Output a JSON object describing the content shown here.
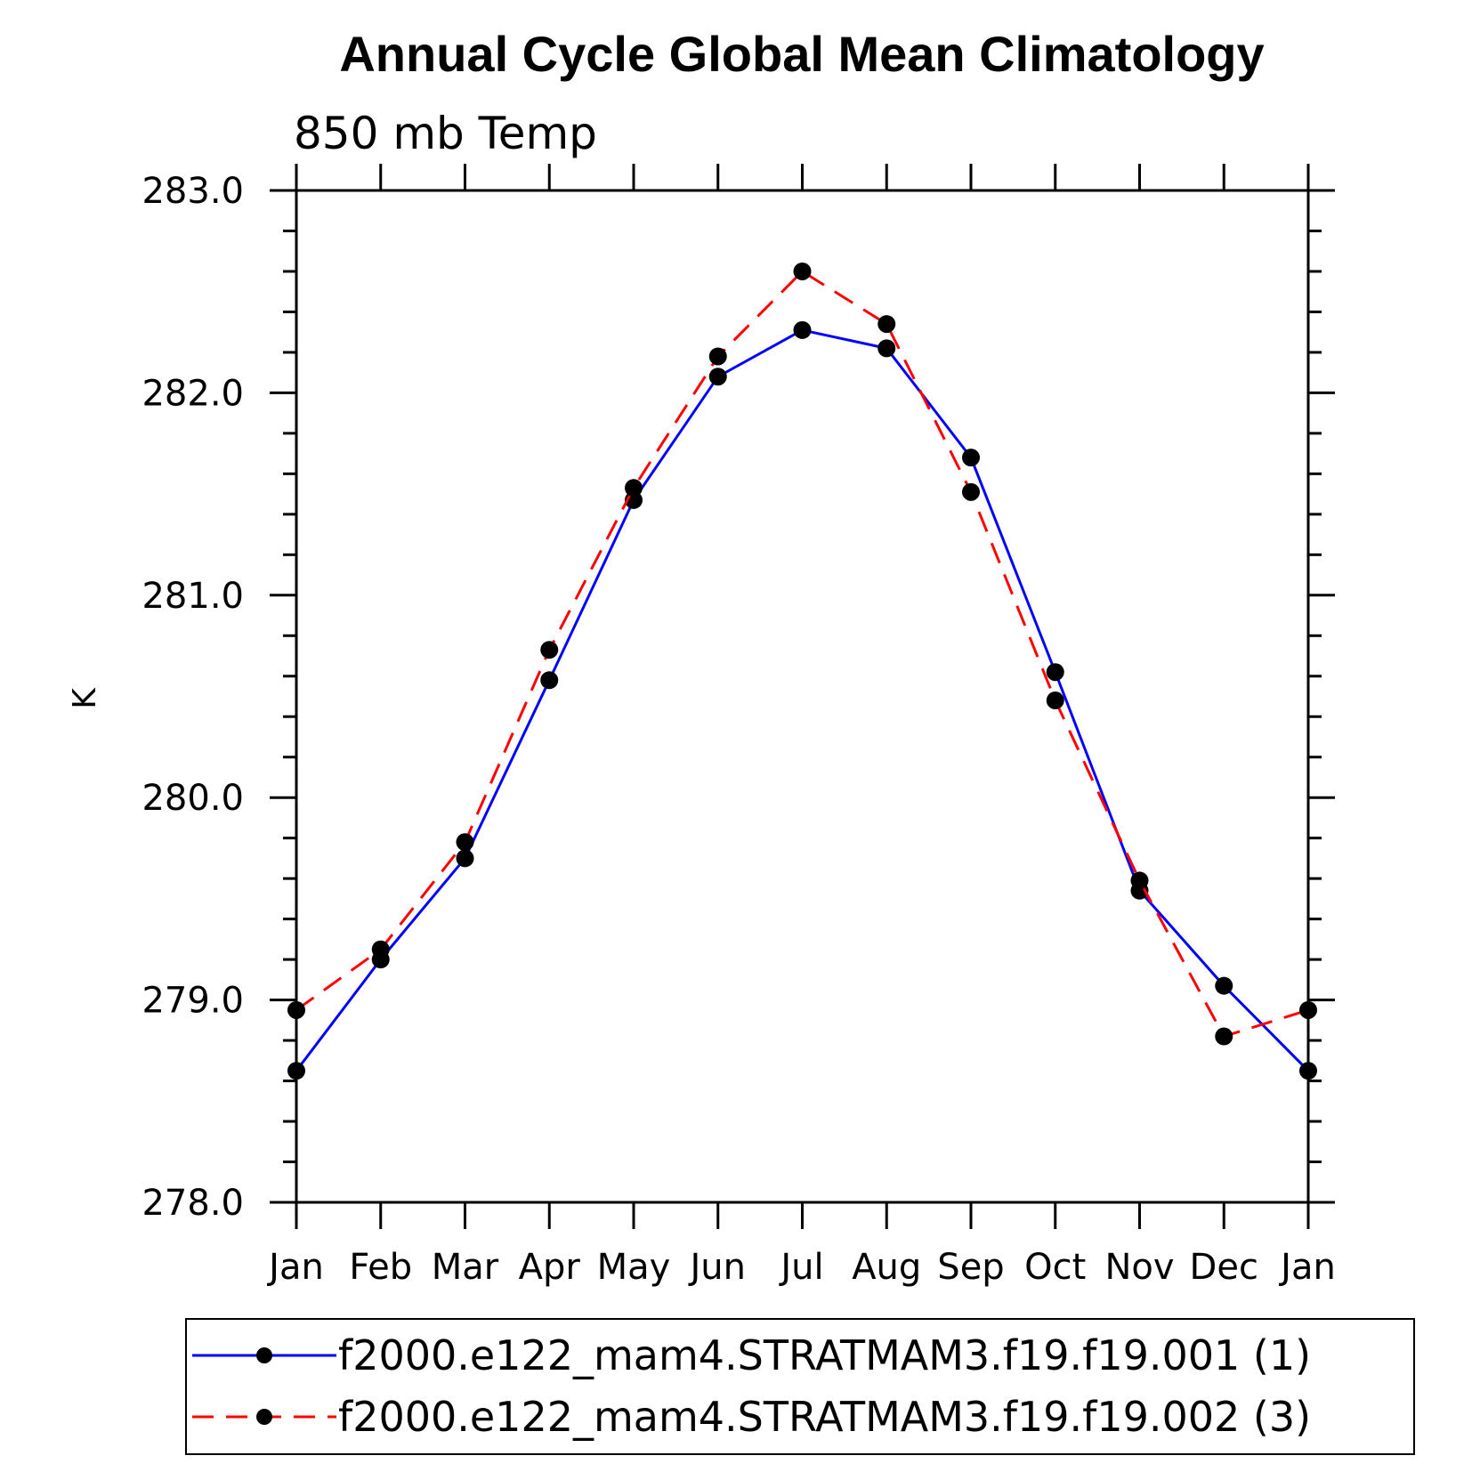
{
  "chart_data": {
    "type": "line",
    "title": "Annual Cycle Global Mean Climatology",
    "subtitle": "850 mb Temp",
    "ylabel": "K",
    "categories": [
      "Jan",
      "Feb",
      "Mar",
      "Apr",
      "May",
      "Jun",
      "Jul",
      "Aug",
      "Sep",
      "Oct",
      "Nov",
      "Dec",
      "Jan"
    ],
    "ylim": [
      278.0,
      283.0
    ],
    "yticks": [
      "278.0",
      "279.0",
      "280.0",
      "281.0",
      "282.0",
      "283.0"
    ],
    "grid": false,
    "legend_position": "bottom",
    "series": [
      {
        "name": "f2000.e122_mam4.STRATMAM3.f19.f19.001 (1)",
        "color": "#0000ff",
        "dash": "solid",
        "marker": "circle",
        "values": [
          278.65,
          279.2,
          279.7,
          280.58,
          281.47,
          282.08,
          282.31,
          282.22,
          281.68,
          280.62,
          279.54,
          279.07,
          278.65
        ]
      },
      {
        "name": "f2000.e122_mam4.STRATMAM3.f19.f19.002 (3)",
        "color": "#ff0000",
        "dash": "dashed",
        "marker": "circle",
        "values": [
          278.95,
          279.25,
          279.78,
          280.73,
          281.53,
          282.18,
          282.6,
          282.34,
          281.51,
          280.48,
          279.59,
          278.82,
          278.95
        ]
      }
    ]
  }
}
